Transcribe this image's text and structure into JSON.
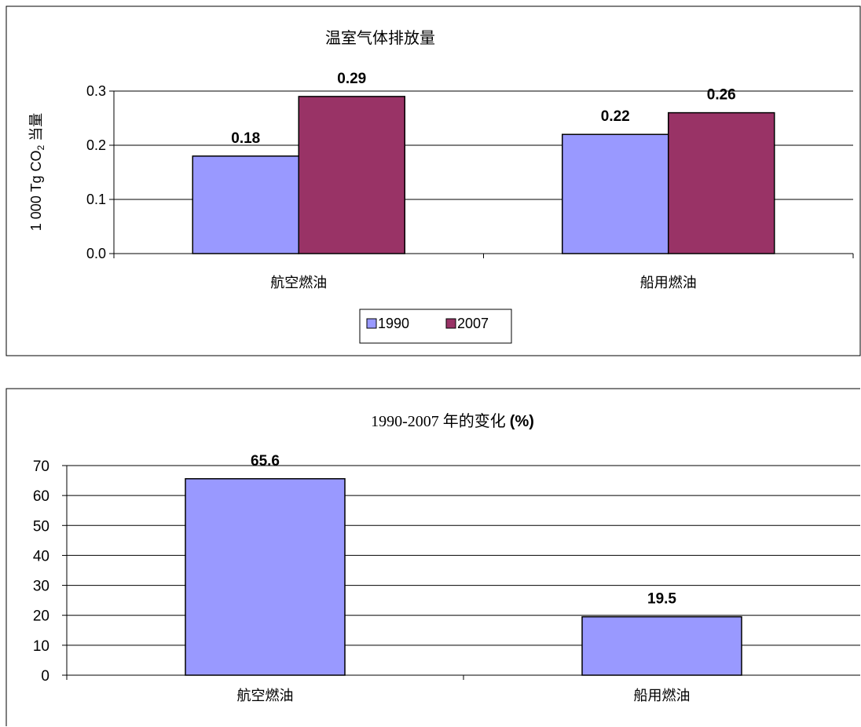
{
  "colors": {
    "series_1990": "#9999ff",
    "series_2007": "#993366",
    "frame": "#000000",
    "grid": "#000000"
  },
  "chart_data": [
    {
      "type": "bar",
      "title": "温室气体排放量",
      "ylabel_main": "1 000 Tg CO",
      "ylabel_sub": "2",
      "ylabel_suffix": " 当量",
      "xlabel": "",
      "categories": [
        "航空燃油",
        "船用燃油"
      ],
      "series": [
        {
          "name": "1990",
          "values": [
            0.18,
            0.22
          ],
          "labels": [
            "0.18",
            "0.22"
          ]
        },
        {
          "name": "2007",
          "values": [
            0.29,
            0.26
          ],
          "labels": [
            "0.29",
            "0.26"
          ]
        }
      ],
      "ylim": [
        0,
        0.3
      ],
      "yticks": [
        0,
        0.1,
        0.2,
        0.3
      ],
      "ytick_labels": [
        "0.0",
        "0.1",
        "0.2",
        "0.3"
      ],
      "grid": true,
      "legend": "bottom-center"
    },
    {
      "type": "bar",
      "title_cn": "1990-2007 年的变化 ",
      "title_pct": "(%)",
      "xlabel": "",
      "ylabel": "",
      "categories": [
        "航空燃油",
        "船用燃油"
      ],
      "series": [
        {
          "values": [
            65.6,
            19.5
          ],
          "labels": [
            "65.6",
            "19.5"
          ]
        }
      ],
      "ylim": [
        0,
        70
      ],
      "yticks": [
        0,
        10,
        20,
        30,
        40,
        50,
        60,
        70
      ],
      "ytick_labels": [
        "0",
        "10",
        "20",
        "30",
        "40",
        "50",
        "60",
        "70"
      ],
      "grid": true
    }
  ]
}
